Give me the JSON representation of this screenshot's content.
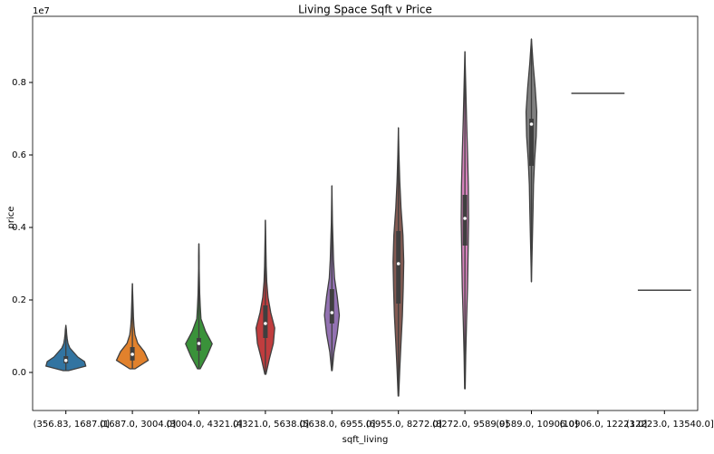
{
  "chart_data": {
    "type": "violin",
    "title": "Living Space Sqft v Price",
    "x_label": "sqft_living",
    "y_label": "price",
    "y_offset_label": "1e7",
    "categories": [
      "(356.83, 1687.0]",
      "(1687.0, 3004.0]",
      "(3004.0, 4321.0]",
      "(4321.0, 5638.0]",
      "(5638.0, 6955.0]",
      "(6955.0, 8272.0]",
      "(8272.0, 9589.0]",
      "(9589.0, 10906.0]",
      "(10906.0, 12223.0]",
      "(12223.0, 13540.0]"
    ],
    "colors": [
      "#3274a1",
      "#e1812c",
      "#3a923a",
      "#c03d3e",
      "#9372b2",
      "#845b53",
      "#d684bd",
      "#7f7f7f",
      "#a9aa35",
      "#338ebd"
    ],
    "violins": [
      {
        "min": 50000,
        "q1": 250000,
        "median": 330000,
        "q3": 450000,
        "max": 1300000,
        "widths": [
          0.1,
          0.75,
          0.7,
          0.45,
          0.3,
          0.15,
          0.08,
          0.05,
          0.03,
          0.02,
          0
        ]
      },
      {
        "min": 100000,
        "q1": 330000,
        "median": 500000,
        "q3": 700000,
        "max": 2450000,
        "widths": [
          0.1,
          0.6,
          0.45,
          0.2,
          0.1,
          0.06,
          0.04,
          0.03,
          0.02,
          0.01,
          0
        ]
      },
      {
        "min": 100000,
        "q1": 600000,
        "median": 800000,
        "q3": 950000,
        "max": 3550000,
        "widths": [
          0.05,
          0.3,
          0.5,
          0.25,
          0.08,
          0.05,
          0.03,
          0.02,
          0.01,
          0.01,
          0
        ]
      },
      {
        "min": -50000,
        "q1": 950000,
        "median": 1350000,
        "q3": 1850000,
        "max": 4200000,
        "widths": [
          0.02,
          0.15,
          0.3,
          0.35,
          0.2,
          0.1,
          0.05,
          0.03,
          0.02,
          0.01,
          0
        ]
      },
      {
        "min": 50000,
        "q1": 1350000,
        "median": 1650000,
        "q3": 2300000,
        "max": 5150000,
        "widths": [
          0.01,
          0.08,
          0.2,
          0.28,
          0.2,
          0.1,
          0.06,
          0.04,
          0.02,
          0.01,
          0
        ]
      },
      {
        "min": -650000,
        "q1": 1900000,
        "median": 3000000,
        "q3": 3900000,
        "max": 6750000,
        "widths": [
          0.01,
          0.05,
          0.1,
          0.15,
          0.18,
          0.2,
          0.17,
          0.1,
          0.05,
          0.02,
          0
        ]
      },
      {
        "min": -450000,
        "q1": 3500000,
        "median": 4250000,
        "q3": 4900000,
        "max": 8850000,
        "widths": [
          0.01,
          0.03,
          0.06,
          0.1,
          0.12,
          0.14,
          0.13,
          0.1,
          0.06,
          0.03,
          0
        ]
      },
      {
        "min": 2500000,
        "q1": 5700000,
        "median": 6850000,
        "q3": 7000000,
        "max": 9200000,
        "widths": [
          0,
          0.02,
          0.04,
          0.06,
          0.08,
          0.12,
          0.18,
          0.2,
          0.14,
          0.06,
          0
        ]
      },
      {
        "median": 7700000
      },
      {
        "median": 2270000
      }
    ],
    "ylim": [
      -1050000,
      9825000
    ],
    "yticks": [
      {
        "value": 0,
        "label": "0.0"
      },
      {
        "value": 2000000,
        "label": "0.2"
      },
      {
        "value": 4000000,
        "label": "0.4"
      },
      {
        "value": 6000000,
        "label": "0.6"
      },
      {
        "value": 8000000,
        "label": "0.8"
      }
    ]
  }
}
